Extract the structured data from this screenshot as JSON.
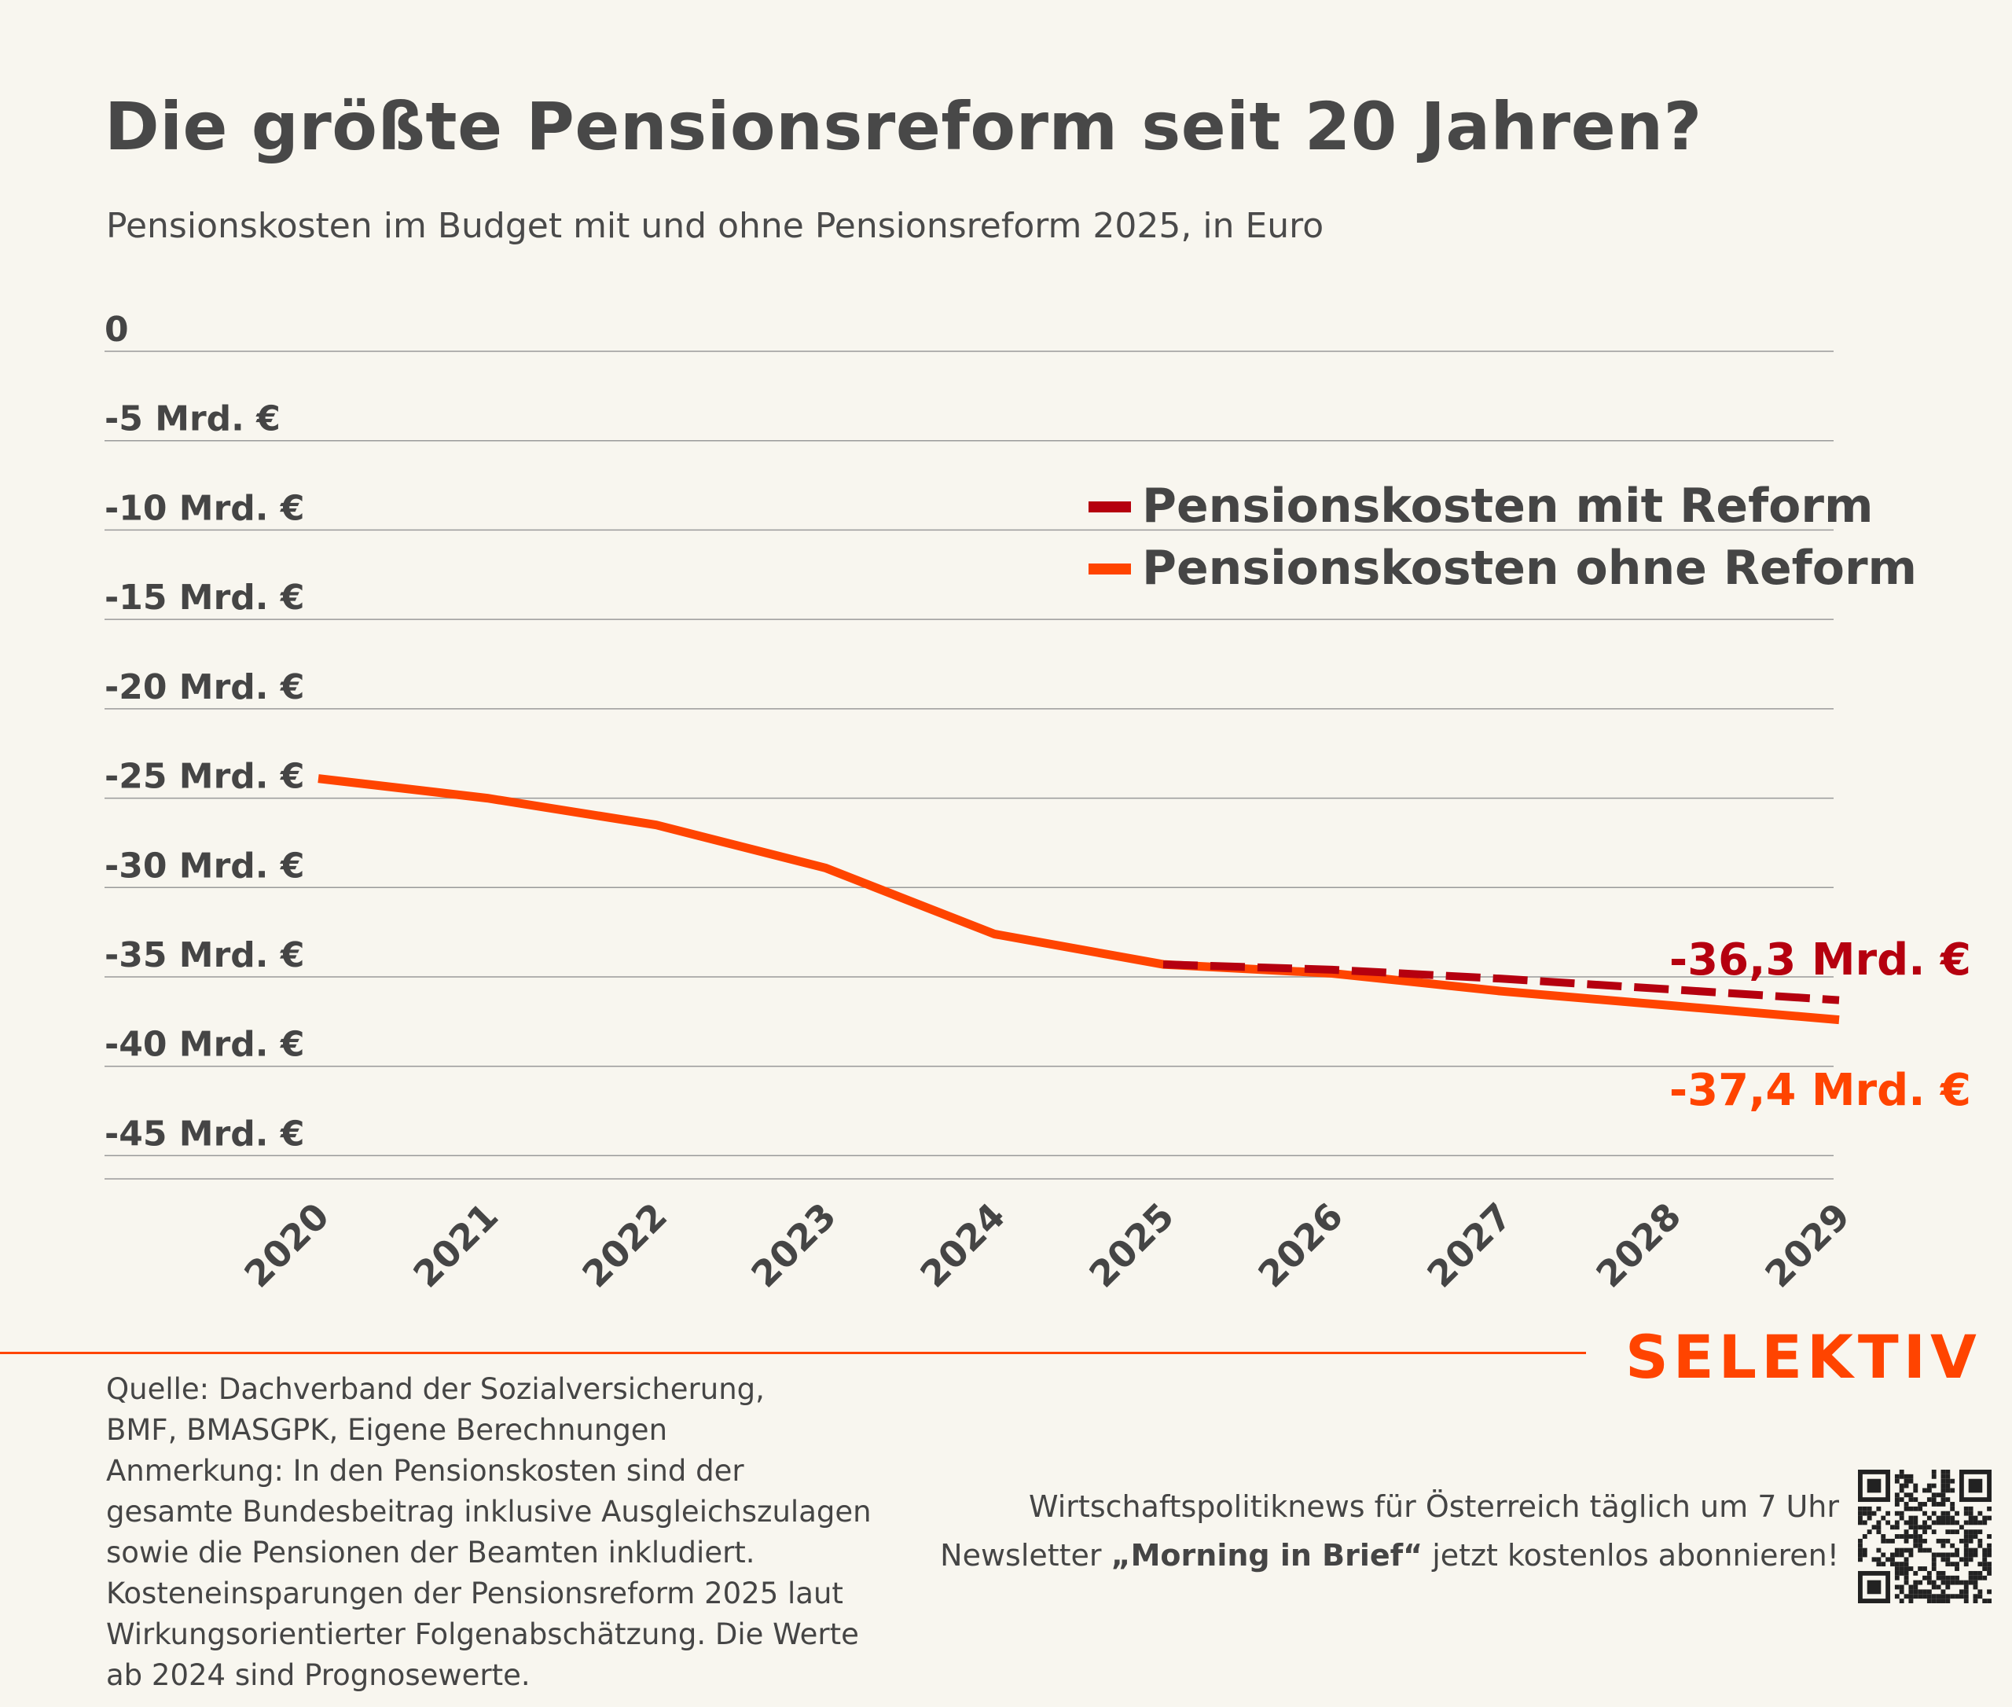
{
  "header": {
    "title": "Die größte Pensionsreform seit 20 Jahren?",
    "subtitle": "Pensionskosten im Budget mit und ohne Pensionsreform 2025, in Euro"
  },
  "chart_data": {
    "type": "line",
    "x": [
      "2020",
      "2021",
      "2022",
      "2023",
      "2024",
      "2025",
      "2026",
      "2027",
      "2028",
      "2029"
    ],
    "y_ticks": [
      {
        "value": 0,
        "label": "0"
      },
      {
        "value": -5,
        "label": "-5 Mrd. €"
      },
      {
        "value": -10,
        "label": "-10 Mrd. €"
      },
      {
        "value": -15,
        "label": "-15 Mrd. €"
      },
      {
        "value": -20,
        "label": "-20 Mrd. €"
      },
      {
        "value": -25,
        "label": "-25 Mrd. €"
      },
      {
        "value": -30,
        "label": "-30 Mrd. €"
      },
      {
        "value": -35,
        "label": "-35 Mrd. €"
      },
      {
        "value": -40,
        "label": "-40 Mrd. €"
      },
      {
        "value": -45,
        "label": "-45 Mrd. €"
      }
    ],
    "ylim": [
      -46.3,
      0
    ],
    "series": [
      {
        "name": "Pensionskosten mit Reform",
        "style": "dashed",
        "color": "#b5000f",
        "x": [
          "2025",
          "2026",
          "2027",
          "2028",
          "2029"
        ],
        "values": [
          -34.3,
          -34.6,
          -35.1,
          -35.7,
          -36.3
        ]
      },
      {
        "name": "Pensionskosten ohne Reform",
        "style": "solid",
        "color": "#ff4400",
        "x": [
          "2020",
          "2021",
          "2022",
          "2023",
          "2024",
          "2025",
          "2026",
          "2027",
          "2028",
          "2029"
        ],
        "values": [
          -23.9,
          -25.0,
          -26.5,
          -28.9,
          -32.6,
          -34.3,
          -34.8,
          -35.8,
          -36.6,
          -37.4
        ]
      }
    ],
    "annotations": [
      {
        "text": "-36,3 Mrd. €",
        "color": "#b5000f"
      },
      {
        "text": "-37,4 Mrd. €",
        "color": "#ff4400"
      }
    ],
    "grid": true,
    "legend": "top-right"
  },
  "footer": {
    "brand": "SELEKTIV",
    "notes": [
      "Quelle: Dachverband der Sozialversicherung,",
      "BMF, BMASGPK, Eigene Berechnungen",
      "Anmerkung: In den Pensionskosten sind der",
      "gesamte Bundesbeitrag inklusive Ausgleichszulagen",
      "sowie die Pensionen der Beamten inkludiert.",
      "Kosteneinsparungen der Pensionsreform 2025 laut",
      "Wirkungsorientierter Folgenabschätzung. Die Werte",
      "ab 2024 sind Prognosewerte."
    ],
    "newsletter_line1": "Wirtschaftspolitiknews für Österreich täglich um 7 Uhr",
    "newsletter_line2_pre": "Newsletter ",
    "newsletter_line2_bold": "„Morning in Brief“",
    "newsletter_line2_post": " jetzt kostenlos abonnieren!",
    "qr_icon": "qr-code-icon"
  },
  "colors": {
    "background": "#f8f6ef",
    "accent": "#ff4400",
    "dark_red": "#b5000f",
    "text": "#454545",
    "grid": "#9a9a9a"
  }
}
